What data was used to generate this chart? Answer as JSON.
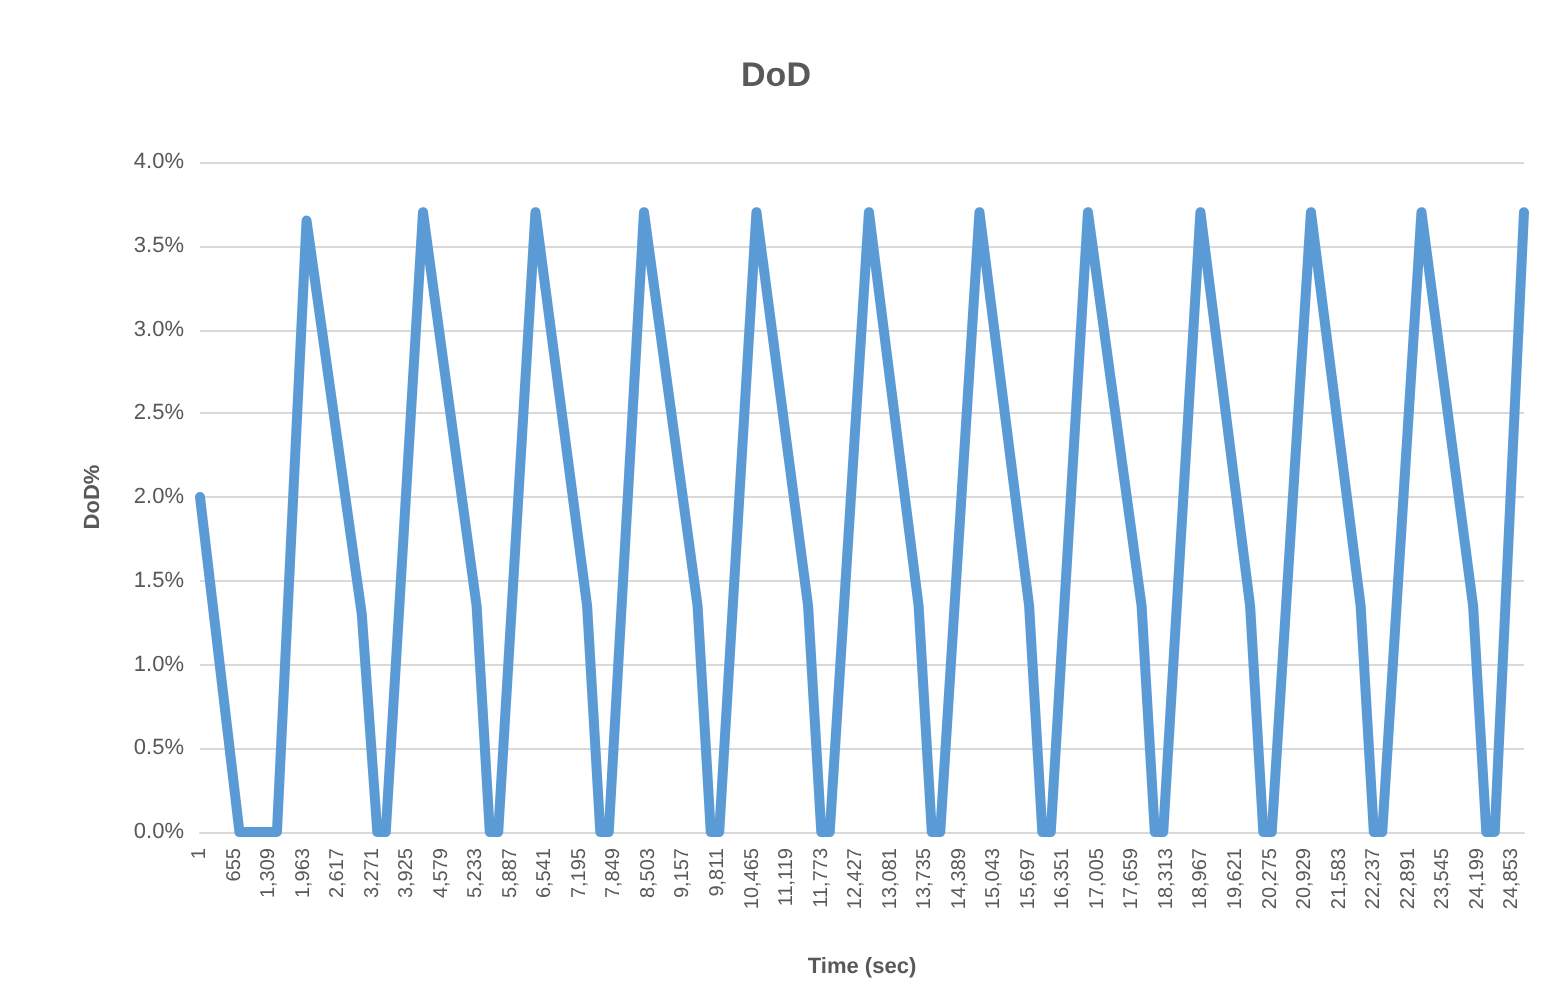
{
  "chart_data": {
    "type": "line",
    "title": "DoD",
    "xlabel": "Time (sec)",
    "ylabel": "DoD%",
    "x": [
      1,
      748,
      1458,
      2019,
      3065,
      3359,
      3519,
      4224,
      5239,
      5489,
      5649,
      6354,
      7332,
      7582,
      7742,
      8409,
      9424,
      9674,
      9834,
      10539,
      11517,
      11767,
      11927,
      12669,
      13610,
      13860,
      14020,
      14762,
      15703,
      15953,
      16113,
      16817,
      17833,
      18083,
      18243,
      18947,
      19888,
      20138,
      20298,
      21040,
      21981,
      22231,
      22391,
      23133,
      24111,
      24361,
      24521,
      25075
    ],
    "series": [
      {
        "color": "#5b9bd5",
        "values": [
          2.0,
          0,
          0,
          3.65,
          1.3,
          0,
          0,
          3.7,
          1.35,
          0,
          0,
          3.7,
          1.35,
          0,
          0,
          3.7,
          1.35,
          0,
          0,
          3.7,
          1.35,
          0,
          0,
          3.7,
          1.35,
          0,
          0,
          3.7,
          1.35,
          0,
          0,
          3.7,
          1.35,
          0,
          0,
          3.7,
          1.35,
          0,
          0,
          3.7,
          1.35,
          0,
          0,
          3.7,
          1.35,
          0,
          0,
          3.7
        ]
      }
    ],
    "xlim": [
      1,
      25075
    ],
    "xticks": [
      1,
      655,
      {
        "value": 1309,
        "label": "1,309"
      },
      {
        "value": 1963,
        "label": "1,963"
      },
      {
        "value": 2617,
        "label": "2,617"
      },
      {
        "value": 3271,
        "label": "3,271"
      },
      {
        "value": 3925,
        "label": "3,925"
      },
      {
        "value": 4579,
        "label": "4,579"
      },
      {
        "value": 5233,
        "label": "5,233"
      },
      {
        "value": 5887,
        "label": "5,887"
      },
      {
        "value": 6541,
        "label": "6,541"
      },
      {
        "value": 7195,
        "label": "7,195"
      },
      {
        "value": 7849,
        "label": "7,849"
      },
      {
        "value": 8503,
        "label": "8,503"
      },
      {
        "value": 9157,
        "label": "9,157"
      },
      {
        "value": 9811,
        "label": "9,811"
      },
      {
        "value": 10465,
        "label": "10,465"
      },
      {
        "value": 11119,
        "label": "11,119"
      },
      {
        "value": 11773,
        "label": "11,773"
      },
      {
        "value": 12427,
        "label": "12,427"
      },
      {
        "value": 13081,
        "label": "13,081"
      },
      {
        "value": 13735,
        "label": "13,735"
      },
      {
        "value": 14389,
        "label": "14,389"
      },
      {
        "value": 15043,
        "label": "15,043"
      },
      {
        "value": 15697,
        "label": "15,697"
      },
      {
        "value": 16351,
        "label": "16,351"
      },
      {
        "value": 17005,
        "label": "17,005"
      },
      {
        "value": 17659,
        "label": "17,659"
      },
      {
        "value": 18313,
        "label": "18,313"
      },
      {
        "value": 18967,
        "label": "18,967"
      },
      {
        "value": 19621,
        "label": "19,621"
      },
      {
        "value": 20275,
        "label": "20,275"
      },
      {
        "value": 20929,
        "label": "20,929"
      },
      {
        "value": 21583,
        "label": "21,583"
      },
      {
        "value": 22237,
        "label": "22,237"
      },
      {
        "value": 22891,
        "label": "22,891"
      },
      {
        "value": 23545,
        "label": "23,545"
      },
      {
        "value": 24199,
        "label": "24,199"
      },
      {
        "value": 24853,
        "label": "24,853"
      }
    ],
    "ylim": [
      0,
      4
    ],
    "yticks": [
      {
        "value": 0,
        "label": "0.0%"
      },
      {
        "value": 0.5,
        "label": "0.5%"
      },
      {
        "value": 1,
        "label": "1.0%"
      },
      {
        "value": 1.5,
        "label": "1.5%"
      },
      {
        "value": 2,
        "label": "2.0%"
      },
      {
        "value": 2.5,
        "label": "2.5%"
      },
      {
        "value": 3,
        "label": "3.0%"
      },
      {
        "value": 3.5,
        "label": "3.5%"
      },
      {
        "value": 4,
        "label": "4.0%"
      }
    ],
    "grid": "y",
    "marker": "none",
    "line_style": "solid"
  }
}
